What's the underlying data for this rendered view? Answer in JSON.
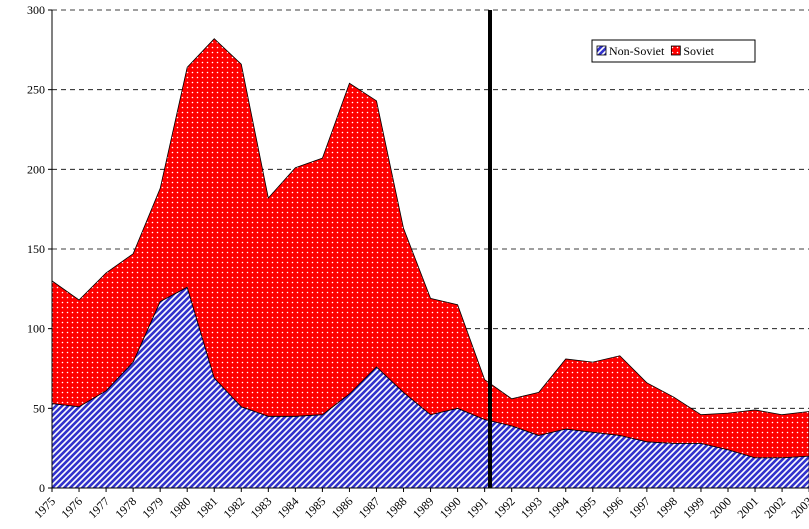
{
  "chart_data": {
    "type": "stacked-area",
    "x": [
      1975,
      1976,
      1977,
      1978,
      1979,
      1980,
      1981,
      1982,
      1983,
      1984,
      1985,
      1986,
      1987,
      1988,
      1989,
      1990,
      1991,
      1992,
      1993,
      1994,
      1995,
      1996,
      1997,
      1998,
      1999,
      2000,
      2001,
      2002,
      2003
    ],
    "series": [
      {
        "name": "Non-Soviet",
        "color": "#3333cc",
        "values": [
          53,
          51,
          61,
          79,
          117,
          126,
          69,
          51,
          45,
          45,
          46,
          59,
          76,
          60,
          46,
          50,
          43,
          39,
          33,
          37,
          35,
          33,
          29,
          28,
          28,
          24,
          19,
          19,
          20
        ]
      },
      {
        "name": "Soviet",
        "color": "#ff0000",
        "values": [
          77,
          67,
          74,
          68,
          71,
          138,
          213,
          215,
          137,
          156,
          161,
          195,
          167,
          103,
          73,
          65,
          25,
          17,
          27,
          44,
          44,
          50,
          37,
          29,
          18,
          23,
          30,
          27,
          28
        ]
      }
    ],
    "ylim": [
      0,
      300
    ],
    "yticks": [
      0,
      50,
      100,
      150,
      200,
      250,
      300
    ],
    "grid": true,
    "legend": "top-right"
  }
}
